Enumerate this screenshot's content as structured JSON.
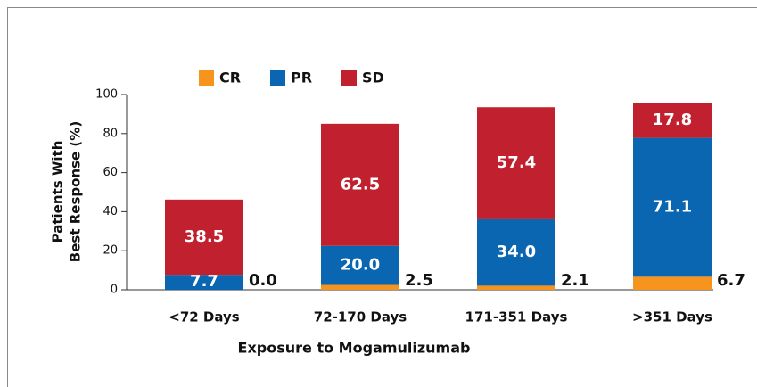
{
  "chart_data": {
    "type": "stacked_bar",
    "x_label": "Exposure to Mogamulizumab",
    "y_label": [
      "Patients With",
      "Best Response (%)"
    ],
    "categories": [
      "<72 Days",
      "72-170 Days",
      "171-351 Days",
      ">351 Days"
    ],
    "series": [
      {
        "name": "CR",
        "color": "#f7941d",
        "values": [
          0.0,
          2.5,
          2.1,
          6.7
        ],
        "value_labels": [
          "0.0",
          "2.5",
          "2.1",
          "6.7"
        ]
      },
      {
        "name": "PR",
        "color": "#0a66b0",
        "values": [
          7.7,
          20.0,
          34.0,
          71.1
        ],
        "value_labels": [
          "7.7",
          "20.0",
          "34.0",
          "71.1"
        ]
      },
      {
        "name": "SD",
        "color": "#c1202f",
        "values": [
          38.5,
          62.5,
          57.4,
          17.8
        ],
        "value_labels": [
          "38.5",
          "62.5",
          "57.4",
          "17.8"
        ]
      }
    ],
    "ylim": [
      0,
      100
    ],
    "yticks": [
      0,
      20,
      40,
      60,
      80,
      100
    ]
  }
}
